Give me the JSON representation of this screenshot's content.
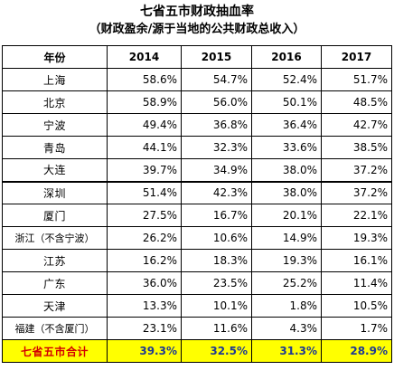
{
  "title": "七省五市财政抽血率",
  "subtitle": "（财政盈余/源于当地的公共财政总收入）",
  "colors": {
    "total_row_bg": "#ffff00",
    "total_label": "#d40000",
    "total_values": "#1f3a93"
  },
  "table": {
    "headers": [
      "年份",
      "2014",
      "2015",
      "2016",
      "2017"
    ],
    "rows": [
      {
        "name": "上海",
        "values": [
          "58.6%",
          "54.7%",
          "52.4%",
          "51.7%"
        ]
      },
      {
        "name": "北京",
        "values": [
          "58.9%",
          "56.0%",
          "50.1%",
          "48.5%"
        ]
      },
      {
        "name": "宁波",
        "values": [
          "49.4%",
          "36.8%",
          "36.4%",
          "42.7%"
        ]
      },
      {
        "name": "青岛",
        "values": [
          "44.1%",
          "32.3%",
          "33.6%",
          "38.5%"
        ]
      },
      {
        "name": "大连",
        "values": [
          "39.7%",
          "34.9%",
          "38.0%",
          "37.2%"
        ]
      },
      {
        "name": "深圳",
        "values": [
          "51.4%",
          "42.3%",
          "38.0%",
          "37.2%"
        ]
      },
      {
        "name": "厦门",
        "values": [
          "27.5%",
          "16.7%",
          "20.1%",
          "22.1%"
        ]
      },
      {
        "name": "浙江（不含宁波）",
        "values": [
          "26.2%",
          "10.6%",
          "14.9%",
          "19.3%"
        ]
      },
      {
        "name": "江苏",
        "values": [
          "16.2%",
          "18.3%",
          "19.3%",
          "16.1%"
        ]
      },
      {
        "name": "广东",
        "values": [
          "36.0%",
          "23.5%",
          "25.2%",
          "11.4%"
        ]
      },
      {
        "name": "天津",
        "values": [
          "13.3%",
          "10.1%",
          "1.8%",
          "10.5%"
        ]
      },
      {
        "name": "福建（不含厦门）",
        "values": [
          "23.1%",
          "11.6%",
          "4.3%",
          "1.7%"
        ]
      }
    ],
    "total": {
      "name": "七省五市合计",
      "values": [
        "39.3%",
        "32.5%",
        "31.3%",
        "28.9%"
      ]
    }
  }
}
